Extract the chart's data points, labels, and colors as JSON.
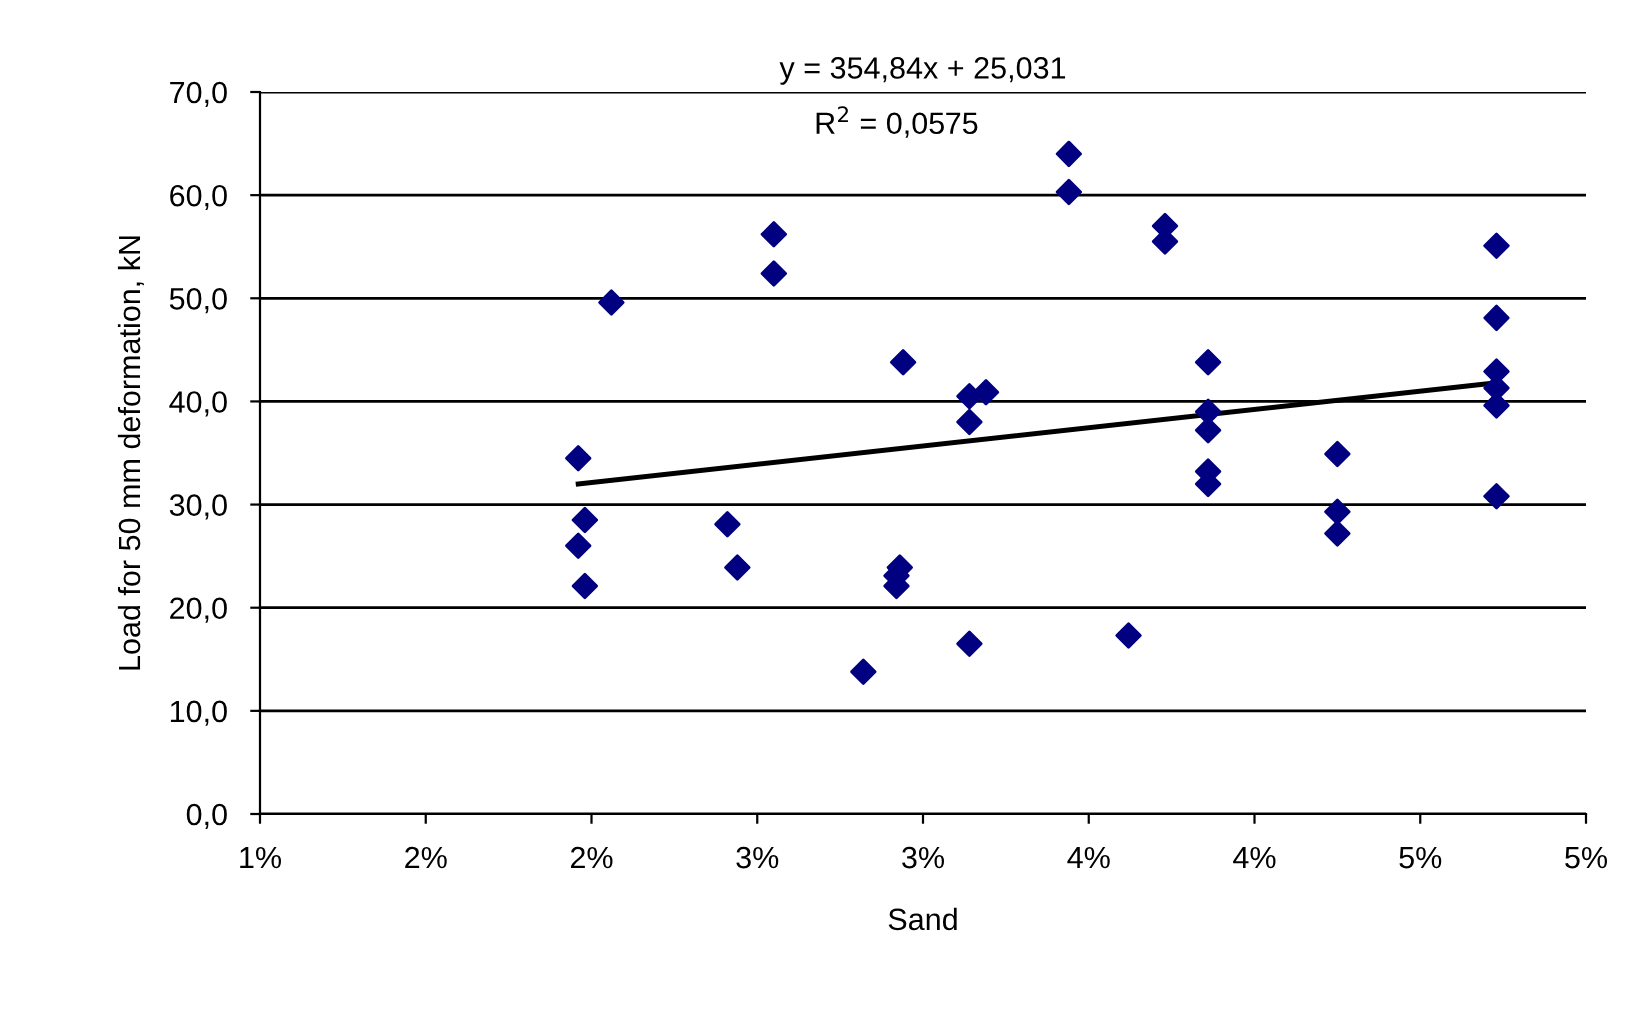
{
  "chart_data": {
    "type": "scatter",
    "xlabel": "Sand",
    "ylabel": "Load for 50 mm deformation, kN",
    "xlim": [
      0.01,
      0.05
    ],
    "xticks": [
      {
        "value": 0.01,
        "label": "1%"
      },
      {
        "value": 0.015,
        "label": "2%"
      },
      {
        "value": 0.02,
        "label": "2%"
      },
      {
        "value": 0.025,
        "label": "3%"
      },
      {
        "value": 0.03,
        "label": "3%"
      },
      {
        "value": 0.035,
        "label": "4%"
      },
      {
        "value": 0.04,
        "label": "4%"
      },
      {
        "value": 0.045,
        "label": "5%"
      },
      {
        "value": 0.05,
        "label": "5%"
      }
    ],
    "ylim": [
      0,
      70
    ],
    "yticks": [
      {
        "value": 0,
        "label": "0,0"
      },
      {
        "value": 10,
        "label": "10,0"
      },
      {
        "value": 20,
        "label": "20,0"
      },
      {
        "value": 30,
        "label": "30,0"
      },
      {
        "value": 40,
        "label": "40,0"
      },
      {
        "value": 50,
        "label": "50,0"
      },
      {
        "value": 60,
        "label": "60,0"
      },
      {
        "value": 70,
        "label": "70,0"
      }
    ],
    "grid": "y",
    "legend": false,
    "marker": "diamond",
    "series": [
      {
        "color": "#000080",
        "x": [
          0.0196,
          0.0198,
          0.0196,
          0.0198,
          0.0206,
          0.0255,
          0.0255,
          0.0294,
          0.0241,
          0.0244,
          0.0293,
          0.0292,
          0.0292,
          0.0282,
          0.0314,
          0.0319,
          0.0314,
          0.0314,
          0.0344,
          0.0344,
          0.0373,
          0.0373,
          0.0362,
          0.0386,
          0.0386,
          0.0386,
          0.0386,
          0.0386,
          0.0425,
          0.0425,
          0.0425,
          0.0473,
          0.0473,
          0.0473,
          0.0473,
          0.0473,
          0.0473
        ],
        "values": [
          34.5,
          28.5,
          26.0,
          22.1,
          49.6,
          56.2,
          52.4,
          43.8,
          28.1,
          23.9,
          23.9,
          23.1,
          22.1,
          13.8,
          40.5,
          40.9,
          38.0,
          16.5,
          64.0,
          60.3,
          57.0,
          55.5,
          17.3,
          43.8,
          39.0,
          37.2,
          33.2,
          32.0,
          34.9,
          29.3,
          27.2,
          55.1,
          48.1,
          42.9,
          41.3,
          39.6,
          30.8
        ]
      },
      {
        "type": "line",
        "color": "#000000",
        "line_style": "solid",
        "marker": "none",
        "x": [
          0.0196,
          0.0473
        ],
        "values": [
          32.0,
          41.8
        ]
      }
    ],
    "annotations": [
      "y = 354,84x + 25,031",
      "R$^{2}$ = 0,0575"
    ]
  }
}
